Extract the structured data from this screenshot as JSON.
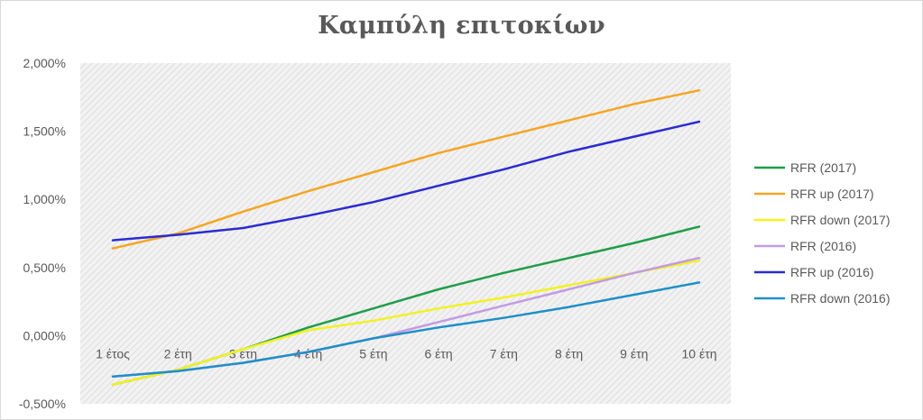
{
  "chart_data": {
    "type": "line",
    "title": "Καμπύλη επιτοκίων",
    "xlabel": "",
    "ylabel": "",
    "categories": [
      "1 έτος",
      "2 έτη",
      "3 έτη",
      "4 έτη",
      "5 έτη",
      "6 έτη",
      "7 έτη",
      "8 έτη",
      "9 έτη",
      "10 έτη"
    ],
    "ylim": [
      -0.5,
      2.0
    ],
    "yticks": [
      -0.5,
      0.0,
      0.5,
      1.0,
      1.5,
      2.0
    ],
    "ytick_labels": [
      "-0,500%",
      "0,000%",
      "0,500%",
      "1,000%",
      "1,500%",
      "2,000%"
    ],
    "y_unit": "%",
    "grid": false,
    "plot_background": "hatched light grey",
    "legend_position": "right",
    "series": [
      {
        "name": "RFR (2017)",
        "color": "#1e9e48",
        "values": [
          -0.36,
          -0.25,
          -0.1,
          0.06,
          0.2,
          0.34,
          0.46,
          0.57,
          0.68,
          0.8
        ]
      },
      {
        "name": "RFR up (2017)",
        "color": "#f5a623",
        "values": [
          0.64,
          0.75,
          0.91,
          1.06,
          1.2,
          1.34,
          1.46,
          1.58,
          1.7,
          1.8
        ]
      },
      {
        "name": "RFR down (2017)",
        "color": "#f2f21f",
        "values": [
          -0.36,
          -0.25,
          -0.1,
          0.04,
          0.11,
          0.2,
          0.28,
          0.37,
          0.46,
          0.55
        ]
      },
      {
        "name": "RFR (2016)",
        "color": "#c39be3",
        "values": [
          -0.3,
          -0.26,
          -0.2,
          -0.12,
          -0.02,
          0.1,
          0.22,
          0.34,
          0.46,
          0.57
        ]
      },
      {
        "name": "RFR up (2016)",
        "color": "#2b2bd4",
        "values": [
          0.7,
          0.74,
          0.79,
          0.88,
          0.98,
          1.1,
          1.22,
          1.35,
          1.46,
          1.57
        ]
      },
      {
        "name": "RFR down (2016)",
        "color": "#1f8fc8",
        "values": [
          -0.3,
          -0.26,
          -0.2,
          -0.12,
          -0.02,
          0.06,
          0.13,
          0.21,
          0.3,
          0.39
        ]
      }
    ]
  }
}
